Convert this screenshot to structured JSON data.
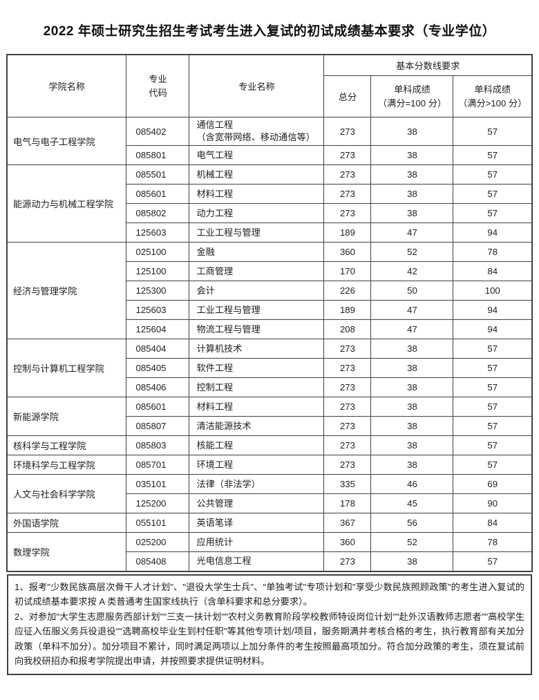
{
  "page_title": "2022 年硕士研究生招生考试考生进入复试的初试成绩基本要求（专业学位）",
  "table": {
    "headers": {
      "college": "学院名称",
      "major_code_lines": [
        "专业",
        "代码"
      ],
      "major_name": "专业名称",
      "score_group": "基本分数线要求",
      "total": "总分",
      "single_100_lines": [
        "单科成绩",
        "（满分=100 分）"
      ],
      "single_gt100_lines": [
        "单科成绩",
        "（满分>100 分）"
      ]
    },
    "groups": [
      {
        "college": "电气与电子工程学院",
        "majors": [
          {
            "code": "085402",
            "name": "通信工程\n（含宽带网络、移动通信等）",
            "total": "273",
            "single_100": "38",
            "single_gt100": "57"
          },
          {
            "code": "085801",
            "name": "电气工程",
            "total": "273",
            "single_100": "38",
            "single_gt100": "57"
          }
        ]
      },
      {
        "college": "能源动力与机械工程学院",
        "majors": [
          {
            "code": "085501",
            "name": "机械工程",
            "total": "273",
            "single_100": "38",
            "single_gt100": "57"
          },
          {
            "code": "085601",
            "name": "材料工程",
            "total": "273",
            "single_100": "38",
            "single_gt100": "57"
          },
          {
            "code": "085802",
            "name": "动力工程",
            "total": "273",
            "single_100": "38",
            "single_gt100": "57"
          },
          {
            "code": "125603",
            "name": "工业工程与管理",
            "total": "189",
            "single_100": "47",
            "single_gt100": "94"
          }
        ]
      },
      {
        "college": "经济与管理学院",
        "majors": [
          {
            "code": "025100",
            "name": "金融",
            "total": "360",
            "single_100": "52",
            "single_gt100": "78"
          },
          {
            "code": "125100",
            "name": "工商管理",
            "total": "170",
            "single_100": "42",
            "single_gt100": "84"
          },
          {
            "code": "125300",
            "name": "会计",
            "total": "226",
            "single_100": "50",
            "single_gt100": "100"
          },
          {
            "code": "125603",
            "name": "工业工程与管理",
            "total": "189",
            "single_100": "47",
            "single_gt100": "94"
          },
          {
            "code": "125604",
            "name": "物流工程与管理",
            "total": "208",
            "single_100": "47",
            "single_gt100": "94"
          }
        ]
      },
      {
        "college": "控制与计算机工程学院",
        "majors": [
          {
            "code": "085404",
            "name": "计算机技术",
            "total": "273",
            "single_100": "38",
            "single_gt100": "57"
          },
          {
            "code": "085405",
            "name": "软件工程",
            "total": "273",
            "single_100": "38",
            "single_gt100": "57"
          },
          {
            "code": "085406",
            "name": "控制工程",
            "total": "273",
            "single_100": "38",
            "single_gt100": "57"
          }
        ]
      },
      {
        "college": "新能源学院",
        "majors": [
          {
            "code": "085601",
            "name": "材料工程",
            "total": "273",
            "single_100": "38",
            "single_gt100": "57"
          },
          {
            "code": "085807",
            "name": "清洁能源技术",
            "total": "273",
            "single_100": "38",
            "single_gt100": "57"
          }
        ]
      },
      {
        "college": "核科学与工程学院",
        "majors": [
          {
            "code": "085803",
            "name": "核能工程",
            "total": "273",
            "single_100": "38",
            "single_gt100": "57"
          }
        ]
      },
      {
        "college": "环境科学与工程学院",
        "majors": [
          {
            "code": "085701",
            "name": "环境工程",
            "total": "273",
            "single_100": "38",
            "single_gt100": "57"
          }
        ]
      },
      {
        "college": "人文与社会科学学院",
        "majors": [
          {
            "code": "035101",
            "name": "法律（非法学）",
            "total": "335",
            "single_100": "46",
            "single_gt100": "69"
          },
          {
            "code": "125200",
            "name": "公共管理",
            "total": "178",
            "single_100": "45",
            "single_gt100": "90"
          }
        ]
      },
      {
        "college": "外国语学院",
        "majors": [
          {
            "code": "055101",
            "name": "英语笔译",
            "total": "367",
            "single_100": "56",
            "single_gt100": "84"
          }
        ]
      },
      {
        "college": "数理学院",
        "majors": [
          {
            "code": "025200",
            "name": "应用统计",
            "total": "360",
            "single_100": "52",
            "single_gt100": "78"
          },
          {
            "code": "085408",
            "name": "光电信息工程",
            "total": "273",
            "single_100": "38",
            "single_gt100": "57"
          }
        ]
      }
    ]
  },
  "notes": [
    "1、报考\"少数民族高层次骨干人才计划\"、\"退役大学生士兵\"、\"单独考试\"专项计划和\"享受少数民族照顾政策\"的考生进入复试的初试成绩基本要求按 A 类普通考生国家线执行（含单科要求和总分要求）。",
    "2、对参加\"大学生志愿服务西部计划\"\"三支一扶计划\"\"农村义务教育阶段学校教师特设岗位计划\"\"赴外汉语教师志愿者\"\"高校学生应征入伍服义务兵役退役\"\"选聘高校毕业生到村任职\"等其他专项计划/项目，服务期满并考核合格的考生，执行教育部有关加分政策（单科不加分）。加分项目不累计，同时满足两项以上加分条件的考生按照最高项加分。符合加分政策的考生，须在复试前向我校研招办和报考学院提出申请，并按照要求提供证明材料。"
  ]
}
